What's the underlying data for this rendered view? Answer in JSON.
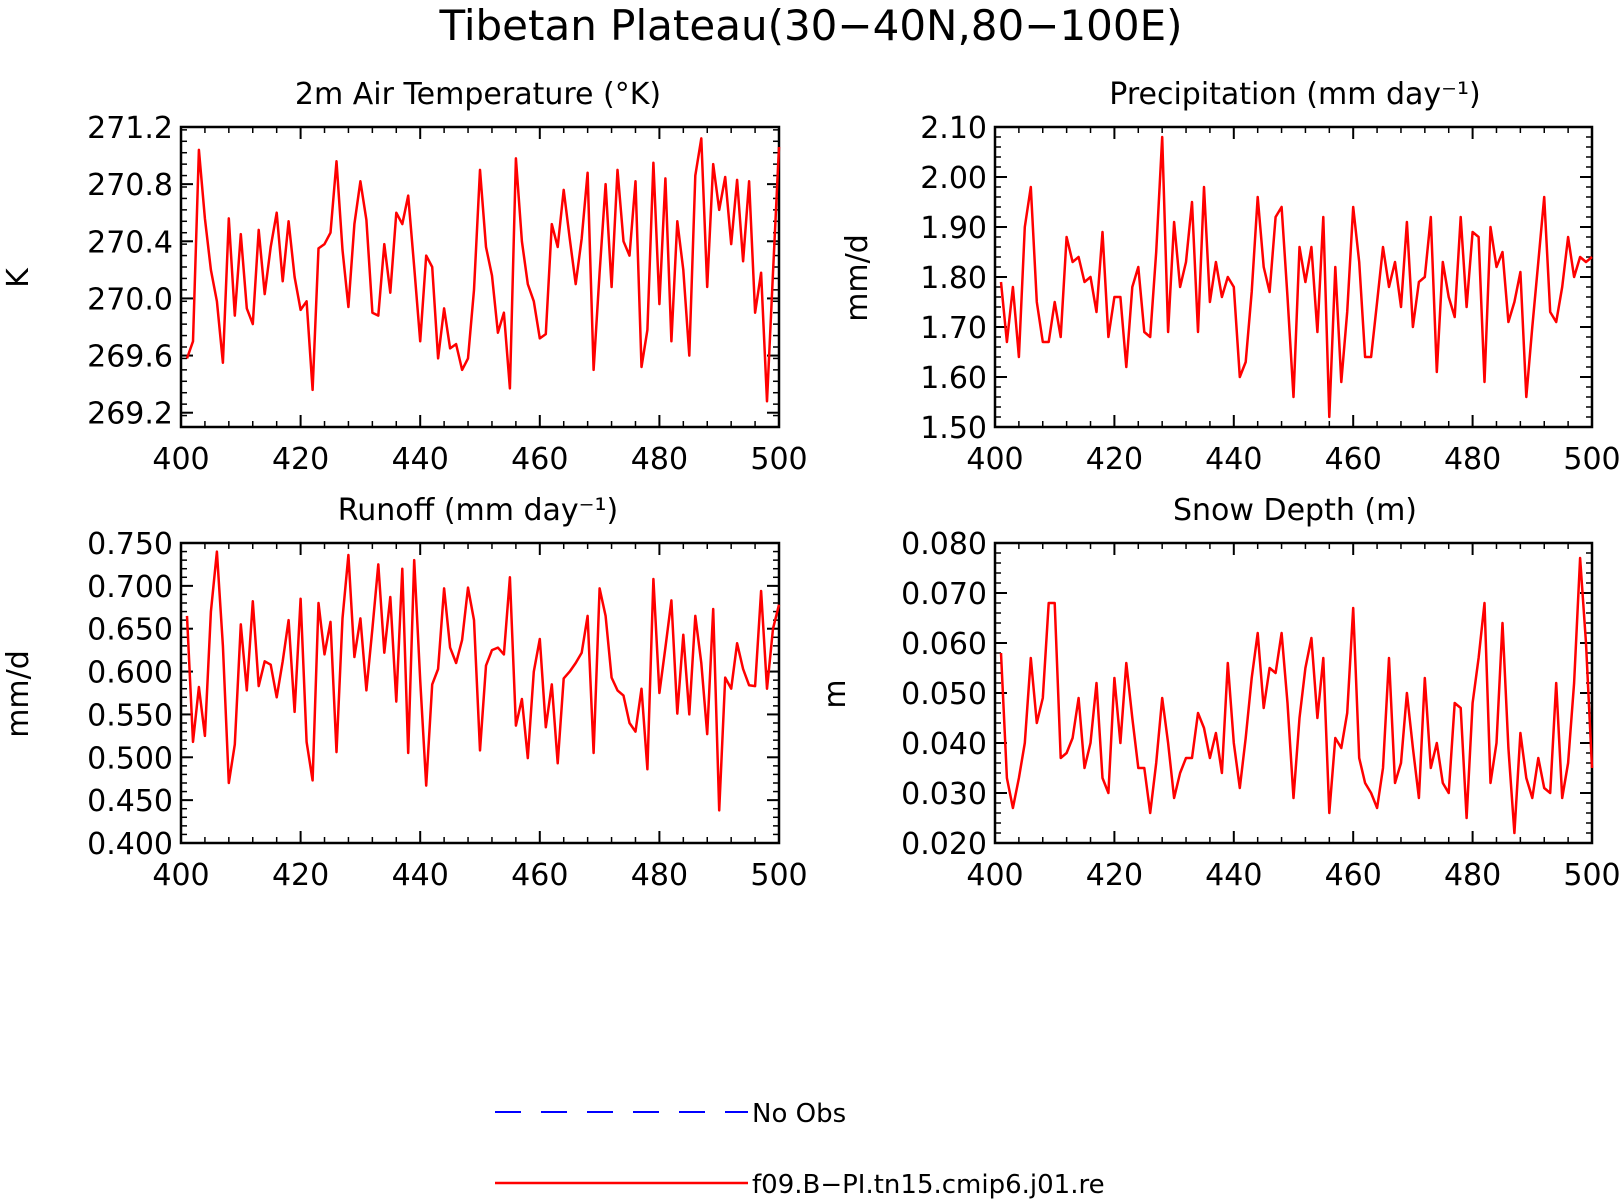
{
  "figure": {
    "title": "Tibetan Plateau(30−40N,80−100E)"
  },
  "legend": {
    "entries": [
      {
        "label": "No Obs",
        "color": "#0000ff",
        "style": "dashed"
      },
      {
        "label": "f09.B−PI.tn15.cmip6.j01.re",
        "color": "#ff0000",
        "style": "solid"
      }
    ]
  },
  "chart_data": [
    {
      "type": "line",
      "title": "2m Air Temperature (°K)",
      "ylabel": "K",
      "xlabel": "",
      "xlim": [
        400,
        500
      ],
      "ylim": [
        269.1,
        271.2
      ],
      "xticks": [
        "400",
        "420",
        "440",
        "460",
        "480",
        "500"
      ],
      "yticks": [
        "269.2",
        "269.6",
        "270.0",
        "270.4",
        "270.8",
        "271.2"
      ],
      "x": [
        401,
        402,
        403,
        404,
        405,
        406,
        407,
        408,
        409,
        410,
        411,
        412,
        413,
        414,
        415,
        416,
        417,
        418,
        419,
        420,
        421,
        422,
        423,
        424,
        425,
        426,
        427,
        428,
        429,
        430,
        431,
        432,
        433,
        434,
        435,
        436,
        437,
        438,
        439,
        440,
        441,
        442,
        443,
        444,
        445,
        446,
        447,
        448,
        449,
        450,
        451,
        452,
        453,
        454,
        455,
        456,
        457,
        458,
        459,
        460,
        461,
        462,
        463,
        464,
        465,
        466,
        467,
        468,
        469,
        470,
        471,
        472,
        473,
        474,
        475,
        476,
        477,
        478,
        479,
        480,
        481,
        482,
        483,
        484,
        485,
        486,
        487,
        488,
        489,
        490,
        491,
        492,
        493,
        494,
        495,
        496,
        497,
        498,
        499,
        500
      ],
      "series": [
        {
          "name": "f09.B−PI.tn15.cmip6.j01.re",
          "color": "#ff0000",
          "values": [
            269.58,
            269.7,
            271.04,
            270.56,
            270.2,
            269.98,
            269.55,
            270.56,
            269.88,
            270.45,
            269.93,
            269.82,
            270.48,
            270.03,
            270.36,
            270.6,
            270.12,
            270.54,
            270.15,
            269.92,
            269.98,
            269.36,
            270.35,
            270.38,
            270.46,
            270.96,
            270.34,
            269.94,
            270.52,
            270.82,
            270.55,
            269.9,
            269.88,
            270.38,
            270.04,
            270.6,
            270.52,
            270.72,
            270.22,
            269.7,
            270.3,
            270.22,
            269.58,
            269.93,
            269.65,
            269.68,
            269.5,
            269.58,
            270.06,
            270.9,
            270.36,
            270.16,
            269.76,
            269.9,
            269.37,
            270.98,
            270.4,
            270.1,
            269.98,
            269.72,
            269.75,
            270.52,
            270.36,
            270.76,
            270.42,
            270.1,
            270.42,
            270.88,
            269.5,
            270.18,
            270.8,
            270.08,
            270.9,
            270.4,
            270.3,
            270.82,
            269.52,
            269.78,
            270.95,
            269.96,
            270.84,
            269.7,
            270.54,
            270.2,
            269.6,
            270.86,
            271.12,
            270.08,
            270.94,
            270.62,
            270.85,
            270.38,
            270.83,
            270.26,
            270.82,
            269.9,
            270.18,
            269.28,
            270.18,
            271.06
          ]
        }
      ]
    },
    {
      "type": "line",
      "title": "Precipitation (mm day⁻¹)",
      "ylabel": "mm/d",
      "xlabel": "",
      "xlim": [
        400,
        500
      ],
      "ylim": [
        1.5,
        2.1
      ],
      "xticks": [
        "400",
        "420",
        "440",
        "460",
        "480",
        "500"
      ],
      "yticks": [
        "1.50",
        "1.60",
        "1.70",
        "1.80",
        "1.90",
        "2.00",
        "2.10"
      ],
      "x": [
        401,
        402,
        403,
        404,
        405,
        406,
        407,
        408,
        409,
        410,
        411,
        412,
        413,
        414,
        415,
        416,
        417,
        418,
        419,
        420,
        421,
        422,
        423,
        424,
        425,
        426,
        427,
        428,
        429,
        430,
        431,
        432,
        433,
        434,
        435,
        436,
        437,
        438,
        439,
        440,
        441,
        442,
        443,
        444,
        445,
        446,
        447,
        448,
        449,
        450,
        451,
        452,
        453,
        454,
        455,
        456,
        457,
        458,
        459,
        460,
        461,
        462,
        463,
        464,
        465,
        466,
        467,
        468,
        469,
        470,
        471,
        472,
        473,
        474,
        475,
        476,
        477,
        478,
        479,
        480,
        481,
        482,
        483,
        484,
        485,
        486,
        487,
        488,
        489,
        490,
        491,
        492,
        493,
        494,
        495,
        496,
        497,
        498,
        499,
        500
      ],
      "series": [
        {
          "name": "f09.B−PI.tn15.cmip6.j01.re",
          "color": "#ff0000",
          "values": [
            1.79,
            1.67,
            1.78,
            1.64,
            1.9,
            1.98,
            1.75,
            1.67,
            1.67,
            1.75,
            1.68,
            1.88,
            1.83,
            1.84,
            1.79,
            1.8,
            1.73,
            1.89,
            1.68,
            1.76,
            1.76,
            1.62,
            1.78,
            1.82,
            1.69,
            1.68,
            1.85,
            2.08,
            1.69,
            1.91,
            1.78,
            1.83,
            1.95,
            1.69,
            1.98,
            1.75,
            1.83,
            1.76,
            1.8,
            1.78,
            1.6,
            1.63,
            1.77,
            1.96,
            1.82,
            1.77,
            1.92,
            1.94,
            1.76,
            1.56,
            1.86,
            1.79,
            1.86,
            1.69,
            1.92,
            1.52,
            1.82,
            1.59,
            1.73,
            1.94,
            1.83,
            1.64,
            1.64,
            1.75,
            1.86,
            1.78,
            1.83,
            1.74,
            1.91,
            1.7,
            1.79,
            1.8,
            1.92,
            1.61,
            1.83,
            1.76,
            1.72,
            1.92,
            1.74,
            1.89,
            1.88,
            1.59,
            1.9,
            1.82,
            1.85,
            1.71,
            1.75,
            1.81,
            1.56,
            1.7,
            1.83,
            1.96,
            1.73,
            1.71,
            1.78,
            1.88,
            1.8,
            1.84,
            1.83,
            1.84
          ]
        }
      ]
    },
    {
      "type": "line",
      "title": "Runoff (mm day⁻¹)",
      "ylabel": "mm/d",
      "xlabel": "",
      "xlim": [
        400,
        500
      ],
      "ylim": [
        0.4,
        0.75
      ],
      "xticks": [
        "400",
        "420",
        "440",
        "460",
        "480",
        "500"
      ],
      "yticks": [
        "0.400",
        "0.450",
        "0.500",
        "0.550",
        "0.600",
        "0.650",
        "0.700",
        "0.750"
      ],
      "x": [
        401,
        402,
        403,
        404,
        405,
        406,
        407,
        408,
        409,
        410,
        411,
        412,
        413,
        414,
        415,
        416,
        417,
        418,
        419,
        420,
        421,
        422,
        423,
        424,
        425,
        426,
        427,
        428,
        429,
        430,
        431,
        432,
        433,
        434,
        435,
        436,
        437,
        438,
        439,
        440,
        441,
        442,
        443,
        444,
        445,
        446,
        447,
        448,
        449,
        450,
        451,
        452,
        453,
        454,
        455,
        456,
        457,
        458,
        459,
        460,
        461,
        462,
        463,
        464,
        465,
        466,
        467,
        468,
        469,
        470,
        471,
        472,
        473,
        474,
        475,
        476,
        477,
        478,
        479,
        480,
        481,
        482,
        483,
        484,
        485,
        486,
        487,
        488,
        489,
        490,
        491,
        492,
        493,
        494,
        495,
        496,
        497,
        498,
        499,
        500
      ],
      "series": [
        {
          "name": "f09.B−PI.tn15.cmip6.j01.re",
          "color": "#ff0000",
          "values": [
            0.665,
            0.518,
            0.582,
            0.525,
            0.67,
            0.74,
            0.63,
            0.47,
            0.515,
            0.655,
            0.578,
            0.682,
            0.583,
            0.612,
            0.608,
            0.57,
            0.612,
            0.66,
            0.553,
            0.685,
            0.518,
            0.473,
            0.68,
            0.62,
            0.658,
            0.506,
            0.662,
            0.736,
            0.617,
            0.662,
            0.578,
            0.65,
            0.725,
            0.622,
            0.687,
            0.565,
            0.72,
            0.505,
            0.73,
            0.59,
            0.467,
            0.585,
            0.603,
            0.697,
            0.628,
            0.61,
            0.637,
            0.698,
            0.66,
            0.508,
            0.607,
            0.625,
            0.628,
            0.62,
            0.71,
            0.537,
            0.568,
            0.499,
            0.6,
            0.638,
            0.535,
            0.585,
            0.493,
            0.592,
            0.6,
            0.61,
            0.622,
            0.665,
            0.505,
            0.697,
            0.665,
            0.593,
            0.578,
            0.572,
            0.54,
            0.53,
            0.58,
            0.486,
            0.708,
            0.575,
            0.628,
            0.683,
            0.551,
            0.643,
            0.55,
            0.665,
            0.61,
            0.527,
            0.673,
            0.438,
            0.593,
            0.58,
            0.633,
            0.603,
            0.584,
            0.583,
            0.694,
            0.58,
            0.65,
            0.678
          ]
        }
      ]
    },
    {
      "type": "line",
      "title": "Snow Depth (m)",
      "ylabel": "m",
      "xlabel": "",
      "xlim": [
        400,
        500
      ],
      "ylim": [
        0.02,
        0.08
      ],
      "xticks": [
        "400",
        "420",
        "440",
        "460",
        "480",
        "500"
      ],
      "yticks": [
        "0.020",
        "0.030",
        "0.040",
        "0.050",
        "0.060",
        "0.070",
        "0.080"
      ],
      "x": [
        401,
        402,
        403,
        404,
        405,
        406,
        407,
        408,
        409,
        410,
        411,
        412,
        413,
        414,
        415,
        416,
        417,
        418,
        419,
        420,
        421,
        422,
        423,
        424,
        425,
        426,
        427,
        428,
        429,
        430,
        431,
        432,
        433,
        434,
        435,
        436,
        437,
        438,
        439,
        440,
        441,
        442,
        443,
        444,
        445,
        446,
        447,
        448,
        449,
        450,
        451,
        452,
        453,
        454,
        455,
        456,
        457,
        458,
        459,
        460,
        461,
        462,
        463,
        464,
        465,
        466,
        467,
        468,
        469,
        470,
        471,
        472,
        473,
        474,
        475,
        476,
        477,
        478,
        479,
        480,
        481,
        482,
        483,
        484,
        485,
        486,
        487,
        488,
        489,
        490,
        491,
        492,
        493,
        494,
        495,
        496,
        497,
        498,
        499,
        500
      ],
      "series": [
        {
          "name": "f09.B−PI.tn15.cmip6.j01.re",
          "color": "#ff0000",
          "values": [
            0.058,
            0.033,
            0.027,
            0.033,
            0.04,
            0.057,
            0.044,
            0.049,
            0.068,
            0.068,
            0.037,
            0.038,
            0.041,
            0.049,
            0.035,
            0.04,
            0.052,
            0.033,
            0.03,
            0.053,
            0.04,
            0.056,
            0.045,
            0.035,
            0.035,
            0.026,
            0.036,
            0.049,
            0.04,
            0.029,
            0.034,
            0.037,
            0.037,
            0.046,
            0.043,
            0.037,
            0.042,
            0.034,
            0.056,
            0.04,
            0.031,
            0.041,
            0.053,
            0.062,
            0.047,
            0.055,
            0.054,
            0.062,
            0.048,
            0.029,
            0.045,
            0.055,
            0.061,
            0.045,
            0.057,
            0.026,
            0.041,
            0.039,
            0.046,
            0.067,
            0.037,
            0.032,
            0.03,
            0.027,
            0.035,
            0.057,
            0.032,
            0.036,
            0.05,
            0.039,
            0.029,
            0.053,
            0.035,
            0.04,
            0.032,
            0.03,
            0.048,
            0.047,
            0.025,
            0.048,
            0.057,
            0.068,
            0.032,
            0.04,
            0.064,
            0.039,
            0.022,
            0.042,
            0.033,
            0.029,
            0.037,
            0.031,
            0.03,
            0.052,
            0.029,
            0.036,
            0.052,
            0.077,
            0.06,
            0.035
          ]
        }
      ]
    }
  ]
}
